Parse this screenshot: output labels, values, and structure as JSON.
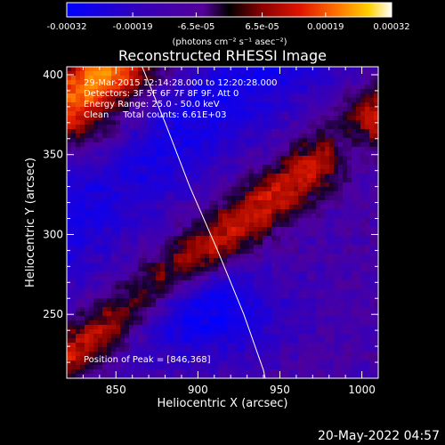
{
  "chart_data": {
    "type": "heatmap",
    "title": "Reconstructed RHESSI Image",
    "xlabel": "Heliocentric X (arcsec)",
    "ylabel": "Heliocentric Y (arcsec)",
    "xlim": [
      820,
      1010
    ],
    "ylim": [
      210,
      405
    ],
    "x_ticks": [
      850,
      900,
      950,
      1000
    ],
    "y_ticks": [
      250,
      300,
      350,
      400
    ],
    "x_tick_labels": [
      "850",
      "900",
      "950",
      "1000"
    ],
    "y_tick_labels": [
      "250",
      "300",
      "350",
      "400"
    ],
    "grid": false,
    "colorbar": {
      "position": "top",
      "vmin": -0.00032,
      "vmax": 0.00032,
      "ticks": [
        -0.00032,
        -0.00019,
        -6.5e-05,
        6.5e-05,
        0.00019,
        0.00032
      ],
      "tick_labels": [
        "-0.00032",
        "-0.00019",
        "-6.5e-05",
        "6.5e-05",
        "0.00019",
        "0.00032"
      ],
      "units_label": "(photons cm⁻² s⁻¹ asec⁻²)"
    },
    "annotations": [
      "29-Mar-2015 12:14:28.000 to 12:20:28.000",
      "Detectors: 3F 5F 6F 7F 8F 9F, Att 0",
      "Energy Range: 25.0 - 50.0 keV",
      "Clean     Total counts: 6.61E+03"
    ],
    "peak_label": "Position of Peak = [846,368]",
    "peak_position": [
      846,
      368
    ],
    "limb_curve": [
      [
        866,
        405
      ],
      [
        880,
        370
      ],
      [
        895,
        330
      ],
      [
        912,
        290
      ],
      [
        928,
        250
      ],
      [
        940,
        215
      ],
      [
        941,
        210
      ]
    ],
    "structures": [
      {
        "kind": "ridge",
        "level": 0.92,
        "amplitude": 0.95,
        "halfwidth": 17,
        "offset": 0
      },
      {
        "kind": "ridge",
        "level": 0.72,
        "amplitude": 0.85,
        "halfwidth": 13,
        "offset": -78
      },
      {
        "kind": "ridge",
        "level": 0.45,
        "amplitude": 0.7,
        "halfwidth": 12,
        "offset": 128
      },
      {
        "kind": "ridge",
        "level": 0.1,
        "amplitude": -0.55,
        "halfwidth": 22,
        "offset": -40
      },
      {
        "kind": "ridge",
        "level": 0.08,
        "amplitude": -0.5,
        "halfwidth": 22,
        "offset": 60
      },
      {
        "kind": "blob",
        "level": -0.95,
        "center": [
          900,
          252
        ],
        "radius": [
          48,
          28
        ]
      },
      {
        "kind": "blob",
        "level": -0.85,
        "center": [
          992,
          355
        ],
        "radius": [
          14,
          16
        ]
      }
    ]
  },
  "footer": {
    "timestamp": "20-May-2022 04:57"
  }
}
